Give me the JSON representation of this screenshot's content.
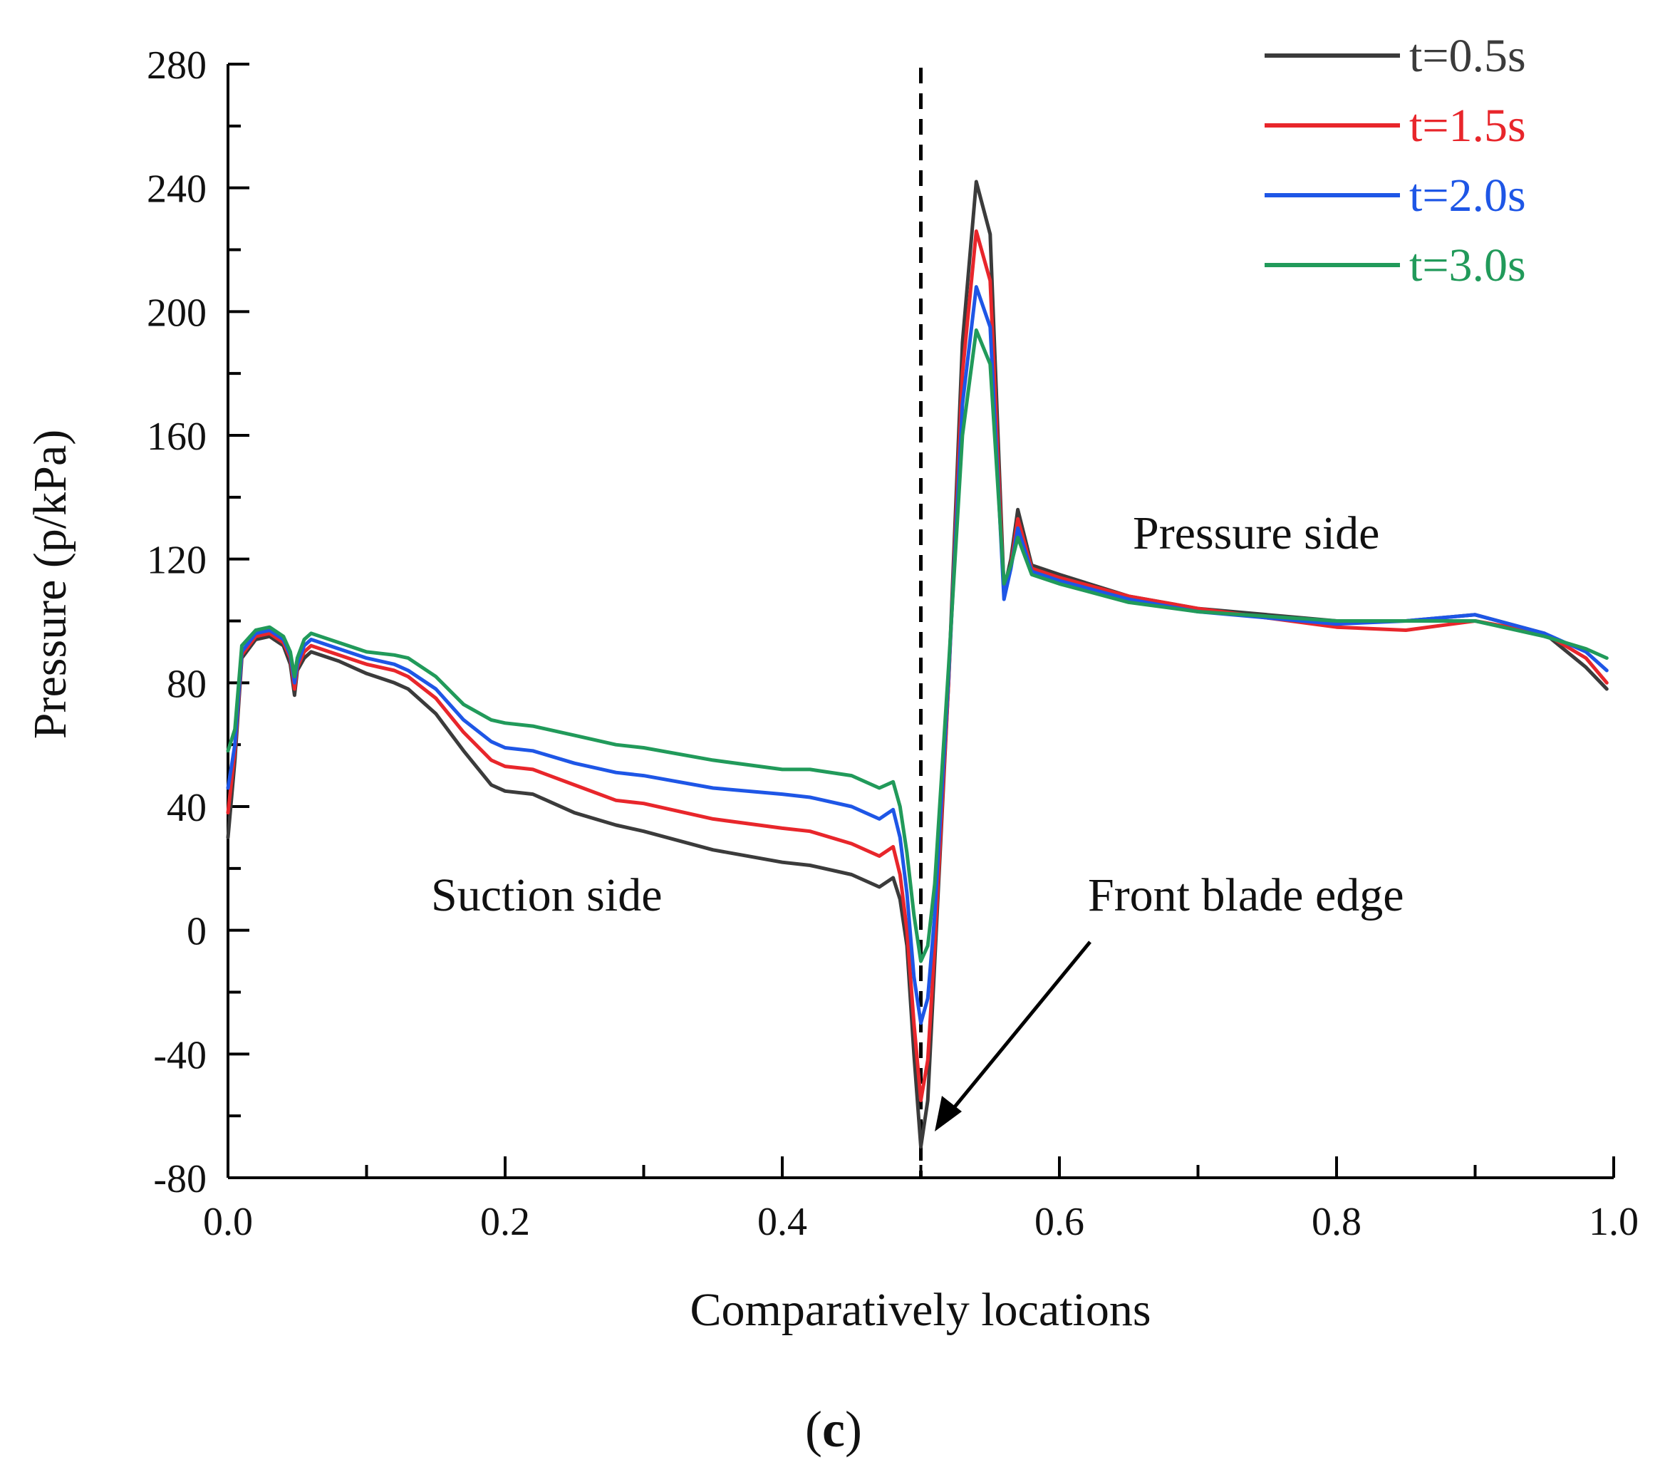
{
  "chart_data": {
    "type": "line",
    "title": "",
    "xlabel": "Comparatively locations",
    "ylabel": "Pressure (p/kPa)",
    "xlim": [
      0.0,
      1.0
    ],
    "ylim": [
      -80,
      280
    ],
    "xticks": [
      0.0,
      0.2,
      0.4,
      0.6,
      0.8,
      1.0
    ],
    "xtick_labels": [
      "0.0",
      "0.2",
      "0.4",
      "0.6",
      "0.8",
      "1.0"
    ],
    "yticks": [
      -80,
      -40,
      0,
      40,
      80,
      120,
      160,
      200,
      240,
      280
    ],
    "ytick_labels": [
      "-80",
      "-40",
      "0",
      "40",
      "80",
      "120",
      "160",
      "200",
      "240",
      "280"
    ],
    "grid": false,
    "legend_position": "top-right",
    "divider_x": 0.5,
    "x": [
      0.0,
      0.005,
      0.01,
      0.02,
      0.03,
      0.04,
      0.045,
      0.048,
      0.05,
      0.055,
      0.06,
      0.08,
      0.1,
      0.12,
      0.13,
      0.15,
      0.17,
      0.19,
      0.2,
      0.22,
      0.25,
      0.28,
      0.3,
      0.35,
      0.4,
      0.42,
      0.45,
      0.47,
      0.48,
      0.485,
      0.49,
      0.495,
      0.5,
      0.505,
      0.51,
      0.52,
      0.53,
      0.54,
      0.55,
      0.56,
      0.565,
      0.57,
      0.58,
      0.6,
      0.65,
      0.7,
      0.8,
      0.85,
      0.9,
      0.95,
      0.98,
      0.995
    ],
    "series": [
      {
        "name": "t=0.5s",
        "color": "#3b3b3b",
        "values": [
          30,
          55,
          88,
          94,
          95,
          92,
          86,
          76,
          84,
          88,
          90,
          87,
          83,
          80,
          78,
          70,
          58,
          47,
          45,
          44,
          38,
          34,
          32,
          26,
          22,
          21,
          18,
          14,
          17,
          10,
          -5,
          -40,
          -70,
          -55,
          -10,
          80,
          190,
          242,
          225,
          110,
          120,
          136,
          118,
          115,
          108,
          104,
          100,
          100,
          102,
          96,
          85,
          78
        ]
      },
      {
        "name": "t=1.5s",
        "color": "#e8262b",
        "values": [
          38,
          58,
          89,
          95,
          96,
          93,
          88,
          78,
          85,
          90,
          92,
          89,
          86,
          84,
          82,
          75,
          64,
          55,
          53,
          52,
          47,
          42,
          41,
          36,
          33,
          32,
          28,
          24,
          27,
          18,
          0,
          -30,
          -55,
          -42,
          -5,
          80,
          180,
          226,
          210,
          108,
          118,
          133,
          117,
          114,
          108,
          104,
          98,
          97,
          100,
          96,
          88,
          80
        ]
      },
      {
        "name": "t=2.0s",
        "color": "#1e56e6",
        "values": [
          46,
          60,
          90,
          96,
          97,
          94,
          89,
          80,
          86,
          92,
          94,
          91,
          88,
          86,
          84,
          78,
          68,
          61,
          59,
          58,
          54,
          51,
          50,
          46,
          44,
          43,
          40,
          36,
          39,
          30,
          12,
          -15,
          -30,
          -22,
          5,
          82,
          170,
          208,
          195,
          107,
          117,
          130,
          116,
          113,
          107,
          103,
          99,
          100,
          102,
          96,
          90,
          84
        ]
      },
      {
        "name": "t=3.0s",
        "color": "#219a5a",
        "values": [
          58,
          65,
          92,
          97,
          98,
          95,
          90,
          82,
          88,
          94,
          96,
          93,
          90,
          89,
          88,
          82,
          73,
          68,
          67,
          66,
          63,
          60,
          59,
          55,
          52,
          52,
          50,
          46,
          48,
          40,
          25,
          5,
          -10,
          -5,
          15,
          85,
          160,
          194,
          183,
          112,
          118,
          127,
          115,
          112,
          106,
          103,
          100,
          100,
          100,
          95,
          91,
          88
        ]
      }
    ],
    "annotations": {
      "pressure_side": "Pressure side",
      "suction_side": "Suction side",
      "front_blade_edge": "Front blade edge"
    },
    "panel_label_open": "(",
    "panel_label_letter": "c",
    "panel_label_close": ")"
  }
}
